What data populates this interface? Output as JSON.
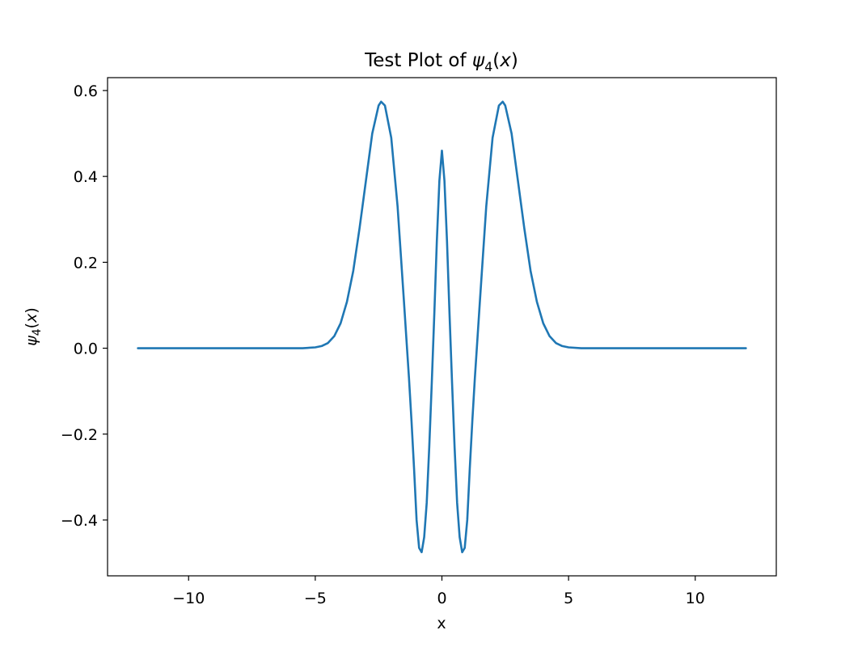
{
  "chart_data": {
    "type": "line",
    "title_prefix": "Test Plot of ",
    "title_math": {
      "symbol": "ψ",
      "subscript": "4",
      "open": "(",
      "var": "x",
      "close": ")"
    },
    "xlabel": "x",
    "ylabel_math": {
      "symbol": "ψ",
      "subscript": "4",
      "open": "(",
      "var": "x",
      "close": ")"
    },
    "xlim": [
      -13.2,
      13.2
    ],
    "ylim": [
      -0.53,
      0.63
    ],
    "x_ticks": [
      {
        "value": -10,
        "label": "−10"
      },
      {
        "value": -5,
        "label": "−5"
      },
      {
        "value": 0,
        "label": "0"
      },
      {
        "value": 5,
        "label": "5"
      },
      {
        "value": 10,
        "label": "10"
      }
    ],
    "y_ticks": [
      {
        "value": -0.4,
        "label": "−0.4"
      },
      {
        "value": -0.2,
        "label": "−0.2"
      },
      {
        "value": 0.0,
        "label": "0.0"
      },
      {
        "value": 0.2,
        "label": "0.2"
      },
      {
        "value": 0.4,
        "label": "0.4"
      },
      {
        "value": 0.6,
        "label": "0.6"
      }
    ],
    "grid": false,
    "series": [
      {
        "color": "#1f77b4",
        "x": [
          -12.0,
          -6.0,
          -5.5,
          -5.0,
          -4.75,
          -4.5,
          -4.25,
          -4.0,
          -3.75,
          -3.5,
          -3.25,
          -3.0,
          -2.75,
          -2.5,
          -2.4,
          -2.25,
          -2.0,
          -1.75,
          -1.5,
          -1.4,
          -1.3,
          -1.2,
          -1.1,
          -1.0,
          -0.9,
          -0.8,
          -0.7,
          -0.6,
          -0.5,
          -0.4,
          -0.3,
          -0.2,
          -0.1,
          0.0,
          0.1,
          0.2,
          0.3,
          0.4,
          0.5,
          0.6,
          0.7,
          0.8,
          0.9,
          1.0,
          1.1,
          1.2,
          1.3,
          1.4,
          1.5,
          1.75,
          2.0,
          2.25,
          2.4,
          2.5,
          2.75,
          3.0,
          3.25,
          3.5,
          3.75,
          4.0,
          4.25,
          4.5,
          4.75,
          5.0,
          5.5,
          6.0,
          12.0
        ],
        "y": [
          0.0,
          0.0,
          0.0,
          0.002,
          0.005,
          0.012,
          0.028,
          0.058,
          0.108,
          0.18,
          0.28,
          0.39,
          0.5,
          0.565,
          0.574,
          0.565,
          0.49,
          0.33,
          0.11,
          0.02,
          -0.07,
          -0.17,
          -0.28,
          -0.4,
          -0.465,
          -0.475,
          -0.44,
          -0.36,
          -0.23,
          -0.08,
          0.08,
          0.25,
          0.39,
          0.46,
          0.39,
          0.25,
          0.08,
          -0.08,
          -0.23,
          -0.36,
          -0.44,
          -0.475,
          -0.465,
          -0.4,
          -0.28,
          -0.17,
          -0.07,
          0.02,
          0.11,
          0.33,
          0.49,
          0.565,
          0.574,
          0.565,
          0.5,
          0.39,
          0.28,
          0.18,
          0.108,
          0.058,
          0.028,
          0.012,
          0.005,
          0.002,
          0.0,
          0.0,
          0.0
        ]
      }
    ]
  }
}
